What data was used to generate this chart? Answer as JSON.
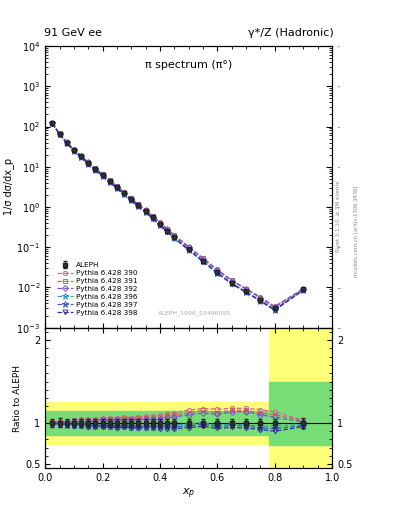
{
  "title_left": "91 GeV ee",
  "title_right": "γ*/Z (Hadronic)",
  "plot_title": "π spectrum (π°)",
  "ylabel_main": "1/σ dσ/dx_p",
  "ylabel_ratio": "Ratio to ALEPH",
  "xlabel": "x_p",
  "rivet_label": "Rivet 3.1.10, ≥ 3M events",
  "mcplots_label": "mcplots.cern.ch [arXiv:1306.3436]",
  "ref_label": "ALEPH_1996_S3486095",
  "xp_data": [
    0.025,
    0.05,
    0.075,
    0.1,
    0.125,
    0.15,
    0.175,
    0.2,
    0.225,
    0.25,
    0.275,
    0.3,
    0.325,
    0.35,
    0.375,
    0.4,
    0.425,
    0.45,
    0.5,
    0.55,
    0.6,
    0.65,
    0.7,
    0.75,
    0.8,
    0.9
  ],
  "aleph_y": [
    120.0,
    65.0,
    40.0,
    26.0,
    18.0,
    12.5,
    8.8,
    6.2,
    4.4,
    3.1,
    2.2,
    1.55,
    1.1,
    0.78,
    0.55,
    0.38,
    0.26,
    0.18,
    0.09,
    0.046,
    0.024,
    0.013,
    0.008,
    0.005,
    0.003,
    0.009
  ],
  "aleph_yerr": [
    6.0,
    3.5,
    2.0,
    1.3,
    0.9,
    0.6,
    0.45,
    0.3,
    0.22,
    0.15,
    0.11,
    0.08,
    0.055,
    0.04,
    0.028,
    0.019,
    0.013,
    0.009,
    0.0045,
    0.0023,
    0.0012,
    0.00065,
    0.0004,
    0.00025,
    0.00015,
    0.0005
  ],
  "mc390_y": [
    121.0,
    66.0,
    41.0,
    27.0,
    18.8,
    13.1,
    9.25,
    6.55,
    4.65,
    3.28,
    2.35,
    1.65,
    1.18,
    0.845,
    0.598,
    0.415,
    0.29,
    0.202,
    0.104,
    0.054,
    0.028,
    0.0153,
    0.0094,
    0.0058,
    0.0034,
    0.0093
  ],
  "mc391_y": [
    120.8,
    65.8,
    40.8,
    26.8,
    18.6,
    12.95,
    9.15,
    6.48,
    4.6,
    3.24,
    2.32,
    1.63,
    1.16,
    0.83,
    0.585,
    0.406,
    0.282,
    0.197,
    0.101,
    0.053,
    0.027,
    0.015,
    0.0092,
    0.0056,
    0.0033,
    0.0092
  ],
  "mc392_y": [
    120.5,
    65.5,
    40.5,
    26.5,
    18.4,
    12.8,
    9.05,
    6.4,
    4.55,
    3.2,
    2.29,
    1.61,
    1.145,
    0.82,
    0.578,
    0.4,
    0.278,
    0.193,
    0.099,
    0.0515,
    0.0265,
    0.0147,
    0.0091,
    0.0055,
    0.0032,
    0.0091
  ],
  "mc396_y": [
    119.5,
    64.5,
    39.5,
    25.5,
    17.7,
    12.2,
    8.6,
    6.05,
    4.28,
    3.0,
    2.14,
    1.5,
    1.06,
    0.757,
    0.532,
    0.367,
    0.252,
    0.175,
    0.089,
    0.046,
    0.0234,
    0.0128,
    0.0078,
    0.0048,
    0.0029,
    0.0088
  ],
  "mc397_y": [
    119.2,
    64.2,
    39.2,
    25.2,
    17.5,
    12.05,
    8.5,
    5.98,
    4.23,
    2.96,
    2.11,
    1.48,
    1.045,
    0.745,
    0.523,
    0.36,
    0.247,
    0.171,
    0.087,
    0.0452,
    0.023,
    0.0126,
    0.0077,
    0.0047,
    0.0028,
    0.0087
  ],
  "mc398_y": [
    118.9,
    63.9,
    38.9,
    24.9,
    17.3,
    11.9,
    8.4,
    5.9,
    4.18,
    2.92,
    2.08,
    1.46,
    1.03,
    0.733,
    0.514,
    0.353,
    0.242,
    0.167,
    0.085,
    0.0441,
    0.0224,
    0.0123,
    0.0075,
    0.0046,
    0.0027,
    0.0086
  ],
  "legend_entries": [
    "ALEPH",
    "Pythia 6.428 390",
    "Pythia 6.428 391",
    "Pythia 6.428 392",
    "Pythia 6.428 396",
    "Pythia 6.428 397",
    "Pythia 6.428 398"
  ]
}
